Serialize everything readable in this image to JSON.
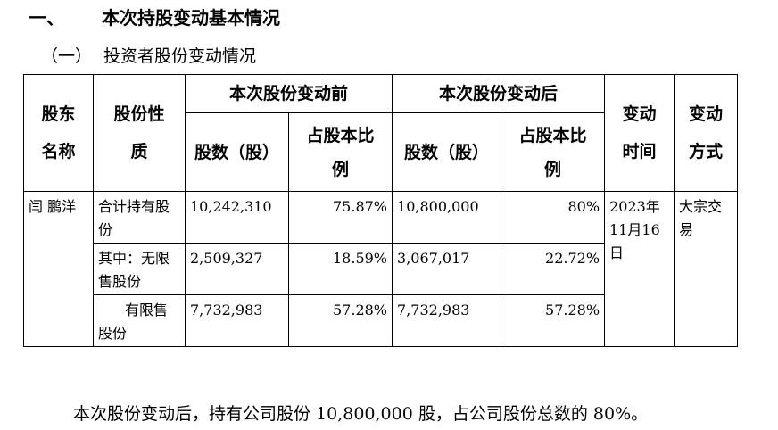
{
  "section": {
    "number": "一、",
    "title": "本次持股变动基本情况"
  },
  "subsection": {
    "number": "（一）",
    "title": "投资者股份变动情况"
  },
  "table": {
    "headers": {
      "holder_name": "股东名称",
      "share_nature": "股份性质",
      "before": "本次股份变动前",
      "after": "本次股份变动后",
      "shares": "股数（股）",
      "ratio": "占股本比例",
      "change_time": "变动时间",
      "change_method": "变动方式"
    },
    "holder": "闫  鹏洋",
    "change_time": "2023年11月16日",
    "change_method": "大宗交易",
    "rows": [
      {
        "nature": "合计持有股份",
        "before_shares": "10,242,310",
        "before_ratio": "75.87%",
        "after_shares": "10,800,000",
        "after_ratio": "80%"
      },
      {
        "nature": "其中：无限售股份",
        "before_shares": "2,509,327",
        "before_ratio": "18.59%",
        "after_shares": "3,067,017",
        "after_ratio": "22.72%"
      },
      {
        "nature": "有限售股份",
        "before_shares": "7,732,983",
        "before_ratio": "57.28%",
        "after_shares": "7,732,983",
        "after_ratio": "57.28%"
      }
    ]
  },
  "footer": "本次股份变动后，持有公司股份 10,800,000 股，占公司股份总数的 80%。"
}
